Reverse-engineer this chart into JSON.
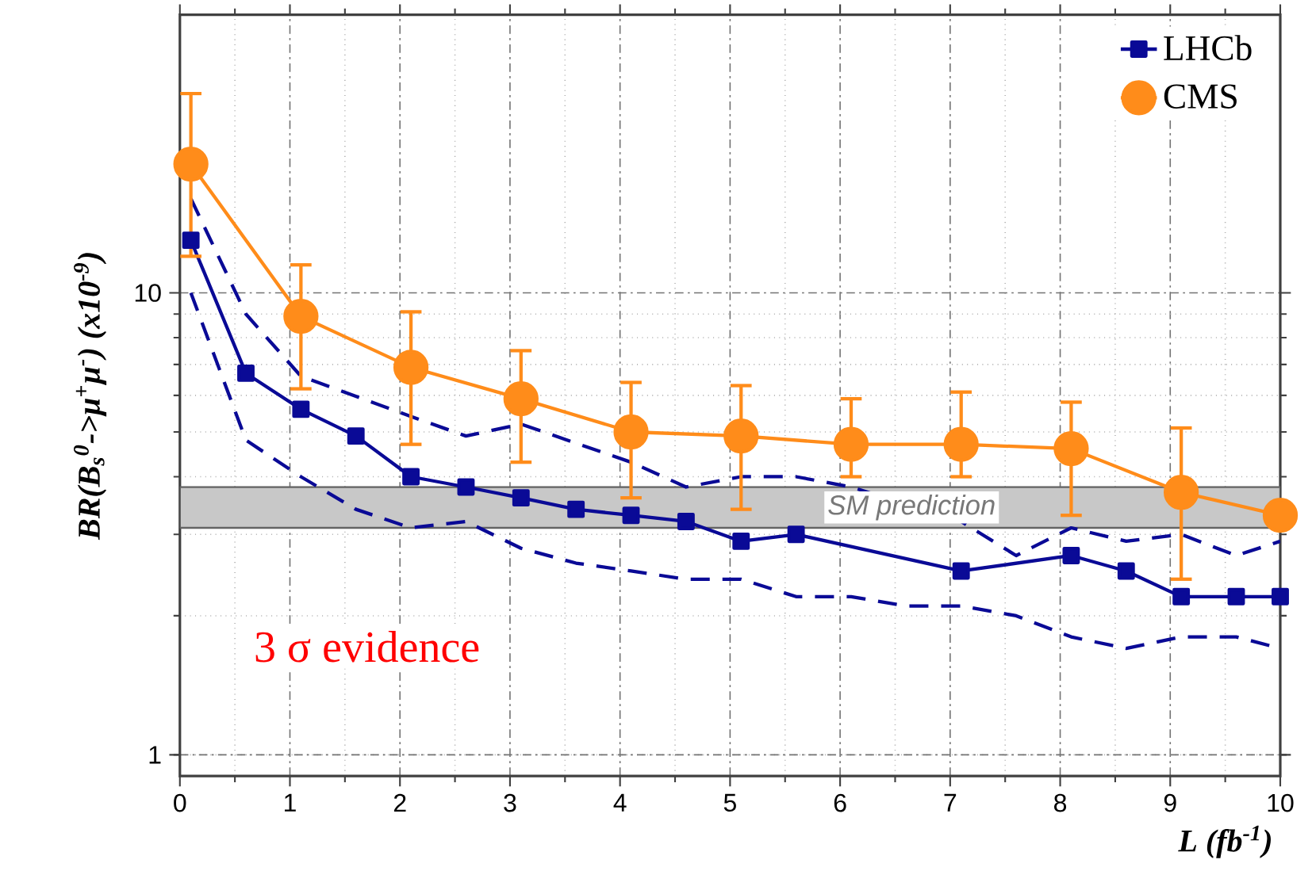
{
  "chart_data": {
    "type": "line",
    "xlabel": "L (fb$^{-1}$)",
    "ylabel": "BR(B$_{s}$$^{0}$->μ$^{+}$μ$^{-}$) (x10$^{-9}$)",
    "xlim": [
      0,
      10
    ],
    "xticks": [
      0,
      1,
      2,
      3,
      4,
      5,
      6,
      7,
      8,
      9,
      10
    ],
    "ylim": [
      0.9,
      40
    ],
    "yticks": [
      1,
      10
    ],
    "log": "y",
    "grid": true,
    "legend": "top right",
    "series": [
      {
        "color": "#0a0a96",
        "line_style": "dashed",
        "marker": "none",
        "x": [
          0.1,
          0.6,
          1.1,
          2.1,
          2.6,
          3.1,
          4.1,
          4.6,
          5.1,
          5.6,
          6.1,
          7.1,
          7.6,
          8.1,
          8.6,
          9.1,
          9.6,
          10
        ],
        "values": [
          16,
          9.0,
          6.6,
          5.4,
          4.9,
          5.2,
          4.3,
          3.8,
          4.0,
          4.0,
          3.8,
          3.2,
          2.7,
          3.1,
          2.9,
          3.0,
          2.7,
          2.9
        ]
      },
      {
        "color": "#0a0a96",
        "line_style": "dashed",
        "marker": "none",
        "x": [
          0.1,
          0.6,
          1.1,
          1.6,
          2.1,
          2.6,
          3.1,
          3.6,
          4.1,
          4.6,
          5.1,
          5.6,
          6.1,
          6.6,
          7.1,
          7.6,
          8.1,
          8.6,
          9.1,
          9.6,
          10
        ],
        "values": [
          10,
          4.8,
          4.0,
          3.4,
          3.1,
          3.2,
          2.8,
          2.6,
          2.5,
          2.4,
          2.4,
          2.2,
          2.2,
          2.1,
          2.1,
          2.0,
          1.8,
          1.7,
          1.8,
          1.8,
          1.7
        ]
      },
      {
        "name": "LHCb",
        "color": "#0a0a96",
        "line_style": "solid",
        "marker": "square",
        "x": [
          0.1,
          0.6,
          1.1,
          1.6,
          2.1,
          2.6,
          3.1,
          3.6,
          4.1,
          4.6,
          5.1,
          5.6,
          7.1,
          8.1,
          8.6,
          9.1,
          9.6,
          10
        ],
        "values": [
          13,
          6.7,
          5.6,
          4.9,
          4.0,
          3.8,
          3.6,
          3.4,
          3.3,
          3.2,
          2.9,
          3.0,
          2.5,
          2.7,
          2.5,
          2.2,
          2.2,
          2.2
        ]
      },
      {
        "name": "CMS",
        "color": "#ff8c1a",
        "line_style": "solid",
        "marker": "circle",
        "x": [
          0.1,
          1.1,
          2.1,
          3.1,
          4.1,
          5.1,
          6.1,
          7.1,
          8.1,
          9.1,
          10
        ],
        "values": [
          19,
          8.9,
          6.9,
          5.9,
          5.0,
          4.9,
          4.7,
          4.7,
          4.6,
          3.7,
          3.3
        ],
        "errors": [
          [
            12,
            27
          ],
          [
            6.2,
            11.5
          ],
          [
            4.7,
            9.1
          ],
          [
            4.3,
            7.5
          ],
          [
            3.6,
            6.4
          ],
          [
            3.4,
            6.3
          ],
          [
            4.0,
            5.9
          ],
          [
            4.0,
            6.1
          ],
          [
            3.3,
            5.8
          ],
          [
            2.4,
            5.1
          ],
          null
        ]
      }
    ],
    "bands": [
      {
        "axis": "y",
        "from": 3.1,
        "to": 3.8,
        "label": "SM prediction",
        "color": "#c8c8c8"
      }
    ],
    "annotations": [
      "3 σ evidence"
    ]
  }
}
